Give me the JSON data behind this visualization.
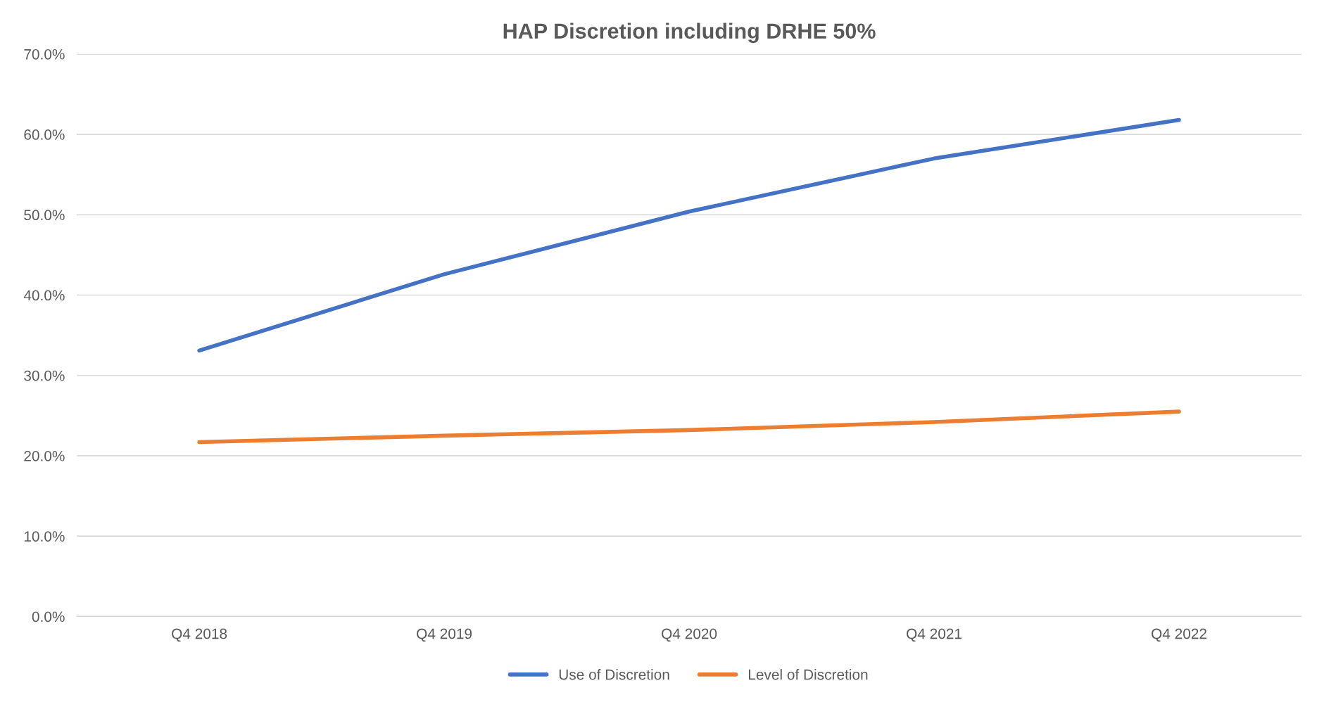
{
  "chart_data": {
    "type": "line",
    "title": "HAP Discretion including DRHE 50%",
    "categories": [
      "Q4 2018",
      "Q4 2019",
      "Q4 2020",
      "Q4 2021",
      "Q4 2022"
    ],
    "series": [
      {
        "name": "Use of Discretion",
        "color": "#4472c4",
        "values": [
          33.1,
          42.6,
          50.4,
          57.0,
          61.8
        ]
      },
      {
        "name": "Level of Discretion",
        "color": "#ed7d31",
        "values": [
          21.7,
          22.5,
          23.2,
          24.2,
          25.5
        ]
      }
    ],
    "ylim": [
      0,
      70
    ],
    "yticks": [
      {
        "value": 0,
        "label": "0.0%"
      },
      {
        "value": 10,
        "label": "10.0%"
      },
      {
        "value": 20,
        "label": "20.0%"
      },
      {
        "value": 30,
        "label": "30.0%"
      },
      {
        "value": 40,
        "label": "40.0%"
      },
      {
        "value": 50,
        "label": "50.0%"
      },
      {
        "value": 60,
        "label": "60.0%"
      },
      {
        "value": 70,
        "label": "70.0%"
      }
    ],
    "grid": "y",
    "legend": "bottom",
    "marker": "none",
    "line_style": "solid"
  }
}
